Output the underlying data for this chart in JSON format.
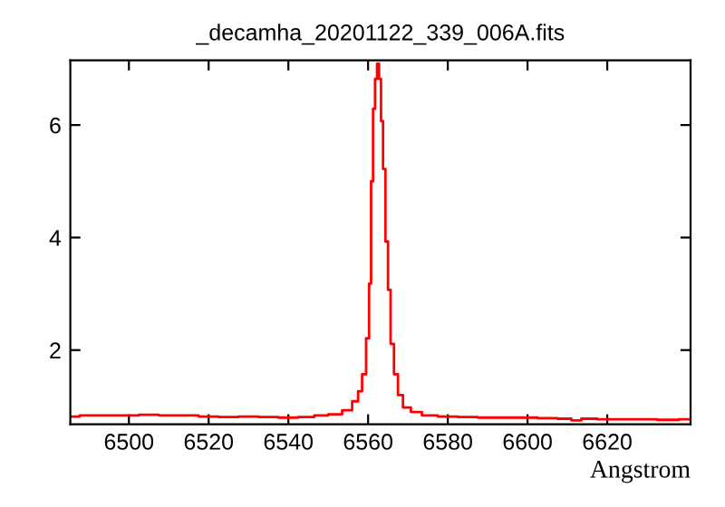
{
  "chart_data": {
    "type": "step",
    "title": "_decamha_20201122_339_006A.fits",
    "xlabel": "Angstrom",
    "x": [
      6485.3,
      6490,
      6495,
      6500,
      6505,
      6510,
      6515,
      6520,
      6525,
      6530,
      6535,
      6540,
      6545,
      6548,
      6552,
      6555,
      6557,
      6558,
      6559,
      6560,
      6560.5,
      6561,
      6561.5,
      6562,
      6562.5,
      6563,
      6563.5,
      6564,
      6564.7,
      6565.3,
      6566,
      6567,
      6568,
      6569.5,
      6572,
      6575,
      6580,
      6585,
      6590,
      6595,
      6600,
      6605,
      6610,
      6612,
      6615,
      6620,
      6625,
      6630,
      6635,
      6640.9
    ],
    "series": [
      {
        "color": "#ff0000",
        "values": [
          0.82,
          0.84,
          0.84,
          0.84,
          0.85,
          0.84,
          0.84,
          0.82,
          0.81,
          0.82,
          0.81,
          0.8,
          0.81,
          0.84,
          0.86,
          0.93,
          1.09,
          1.27,
          1.57,
          2.21,
          3.18,
          5.0,
          6.29,
          6.82,
          7.09,
          6.82,
          6.07,
          5.22,
          3.93,
          3.07,
          2.11,
          1.57,
          1.2,
          0.98,
          0.9,
          0.84,
          0.82,
          0.81,
          0.8,
          0.8,
          0.8,
          0.79,
          0.78,
          0.75,
          0.78,
          0.77,
          0.77,
          0.77,
          0.76,
          0.77
        ]
      }
    ],
    "xlim": [
      6485.3,
      6640.9
    ],
    "ylim": [
      0.68,
      7.15
    ],
    "xticks": [
      6500,
      6520,
      6540,
      6560,
      6580,
      6600,
      6620
    ],
    "yticks": [
      2,
      4,
      6
    ],
    "grid": false,
    "line_style": "solid",
    "marker": "none"
  }
}
